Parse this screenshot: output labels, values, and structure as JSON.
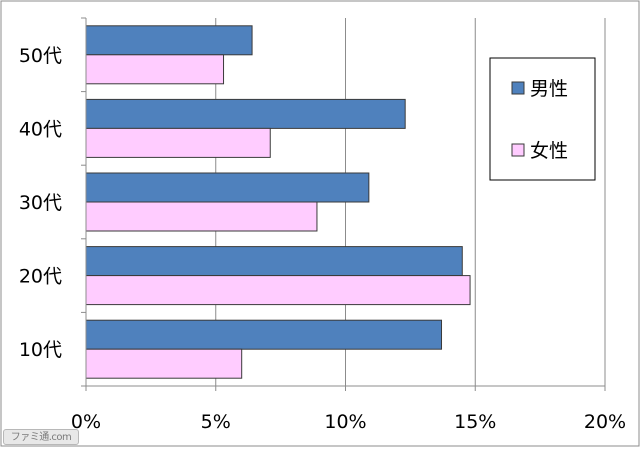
{
  "chart_data": {
    "type": "bar",
    "orientation": "horizontal",
    "categories": [
      "50代",
      "40代",
      "30代",
      "20代",
      "10代"
    ],
    "series": [
      {
        "name": "男性",
        "values": [
          6.4,
          12.3,
          10.9,
          14.5,
          13.7
        ],
        "color": "#4f81bd"
      },
      {
        "name": "女性",
        "values": [
          5.3,
          7.1,
          8.9,
          14.8,
          6.0
        ],
        "color": "#ffccff"
      }
    ],
    "xlim": [
      0,
      20
    ],
    "x_ticks": [
      "0%",
      "5%",
      "10%",
      "15%",
      "20%"
    ],
    "title": "",
    "xlabel": "",
    "ylabel": "",
    "grid": "vertical",
    "legend_position": "right"
  },
  "watermark": {
    "text": "ファミ通.com"
  },
  "colors": {
    "grid": "#8c8c8c",
    "bar_border": "#3a3a3a",
    "frame": "#8c8c8c"
  }
}
